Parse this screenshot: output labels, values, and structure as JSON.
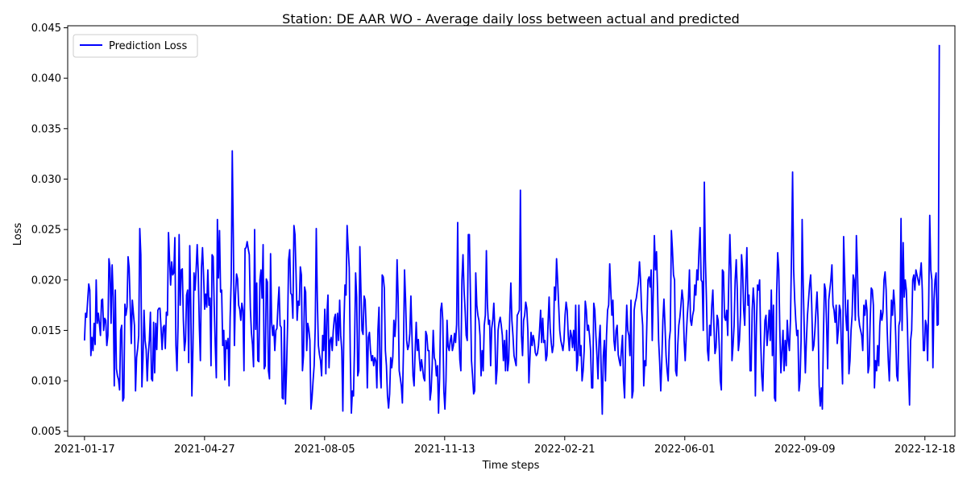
{
  "chart_data": {
    "type": "line",
    "title": "Station: DE AAR WO - Average daily loss between actual and predicted",
    "xlabel": "Time steps",
    "ylabel": "Loss",
    "x_start": "2021-01-17",
    "x_end": "2022-12-30",
    "xlim": [
      "2021-01-03",
      "2023-01-12"
    ],
    "ylim": [
      0.0045,
      0.0452
    ],
    "x_ticks": [
      "2021-01-17",
      "2021-04-27",
      "2021-08-05",
      "2021-11-13",
      "2022-02-21",
      "2022-06-01",
      "2022-09-09",
      "2022-12-18"
    ],
    "y_ticks": [
      "0.005",
      "0.010",
      "0.015",
      "0.020",
      "0.025",
      "0.030",
      "0.035",
      "0.040",
      "0.045"
    ],
    "grid": false,
    "legend_position": "top-left",
    "series": [
      {
        "name": "Prediction Loss",
        "color": "#0000ff",
        "values": [
          0.014,
          0.0167,
          0.0163,
          0.018,
          0.0196,
          0.019,
          0.0125,
          0.0143,
          0.013,
          0.0157,
          0.0136,
          0.02,
          0.0157,
          0.0167,
          0.0157,
          0.0145,
          0.018,
          0.0181,
          0.015,
          0.0162,
          0.016,
          0.0135,
          0.0145,
          0.0221,
          0.0212,
          0.0157,
          0.0215,
          0.0183,
          0.0095,
          0.019,
          0.0112,
          0.0105,
          0.0101,
          0.0091,
          0.015,
          0.0155,
          0.008,
          0.0083,
          0.0176,
          0.0165,
          0.0173,
          0.0223,
          0.0212,
          0.0175,
          0.0137,
          0.018,
          0.0167,
          0.0155,
          0.009,
          0.0123,
          0.0132,
          0.0145,
          0.0251,
          0.0225,
          0.0094,
          0.0122,
          0.017,
          0.014,
          0.0131,
          0.01,
          0.0126,
          0.014,
          0.0168,
          0.0102,
          0.01,
          0.0158,
          0.0108,
          0.0157,
          0.0131,
          0.017,
          0.0172,
          0.0172,
          0.0152,
          0.0131,
          0.0153,
          0.0155,
          0.0132,
          0.0168,
          0.0165,
          0.0247,
          0.022,
          0.0195,
          0.0218,
          0.0205,
          0.0207,
          0.0242,
          0.0135,
          0.011,
          0.0155,
          0.0245,
          0.0175,
          0.021,
          0.0211,
          0.016,
          0.013,
          0.014,
          0.0185,
          0.019,
          0.0118,
          0.0234,
          0.0174,
          0.0085,
          0.0132,
          0.0207,
          0.019,
          0.021,
          0.0235,
          0.0207,
          0.0154,
          0.012,
          0.0212,
          0.0232,
          0.0205,
          0.0171,
          0.0186,
          0.0173,
          0.021,
          0.0175,
          0.0182,
          0.0115,
          0.0225,
          0.0223,
          0.0175,
          0.0135,
          0.0103,
          0.026,
          0.0202,
          0.0249,
          0.0188,
          0.019,
          0.0135,
          0.015,
          0.0101,
          0.014,
          0.0132,
          0.0142,
          0.0095,
          0.0163,
          0.02,
          0.0328,
          0.024,
          0.0135,
          0.0185,
          0.0206,
          0.0201,
          0.0175,
          0.0171,
          0.016,
          0.0177,
          0.017,
          0.011,
          0.0231,
          0.0232,
          0.0238,
          0.0231,
          0.0225,
          0.0172,
          0.0148,
          0.0136,
          0.0114,
          0.025,
          0.0151,
          0.0197,
          0.012,
          0.0119,
          0.02,
          0.021,
          0.0182,
          0.0235,
          0.0112,
          0.0115,
          0.0201,
          0.0198,
          0.011,
          0.0102,
          0.0226,
          0.0158,
          0.0145,
          0.0155,
          0.013,
          0.015,
          0.0152,
          0.0175,
          0.0193,
          0.0155,
          0.0153,
          0.0083,
          0.0082,
          0.016,
          0.0077,
          0.011,
          0.0155,
          0.022,
          0.023,
          0.0187,
          0.0185,
          0.0162,
          0.0254,
          0.0245,
          0.0205,
          0.016,
          0.0179,
          0.0175,
          0.0213,
          0.0205,
          0.011,
          0.0125,
          0.0193,
          0.0188,
          0.013,
          0.0157,
          0.0151,
          0.014,
          0.0072,
          0.0083,
          0.01,
          0.0115,
          0.0152,
          0.0251,
          0.018,
          0.0135,
          0.0126,
          0.012,
          0.0105,
          0.0145,
          0.013,
          0.0171,
          0.0107,
          0.0165,
          0.0185,
          0.0113,
          0.014,
          0.0143,
          0.013,
          0.015,
          0.0162,
          0.0166,
          0.0135,
          0.0167,
          0.014,
          0.018,
          0.0145,
          0.013,
          0.007,
          0.0155,
          0.0195,
          0.0185,
          0.0254,
          0.0232,
          0.0212,
          0.0125,
          0.0068,
          0.009,
          0.0085,
          0.0135,
          0.0207,
          0.0183,
          0.0105,
          0.011,
          0.0233,
          0.019,
          0.015,
          0.0146,
          0.0184,
          0.018,
          0.015,
          0.0093,
          0.0143,
          0.0148,
          0.013,
          0.012,
          0.0125,
          0.0115,
          0.0123,
          0.012,
          0.0093,
          0.015,
          0.0173,
          0.011,
          0.0093,
          0.0205,
          0.0203,
          0.0192,
          0.013,
          0.0115,
          0.0085,
          0.0073,
          0.0087,
          0.0123,
          0.0113,
          0.0124,
          0.016,
          0.0144,
          0.0163,
          0.022,
          0.0183,
          0.011,
          0.0103,
          0.0095,
          0.0078,
          0.013,
          0.021,
          0.018,
          0.014,
          0.0131,
          0.0135,
          0.0147,
          0.0184,
          0.0145,
          0.0105,
          0.0095,
          0.013,
          0.0158,
          0.013,
          0.0141,
          0.0122,
          0.011,
          0.0121,
          0.0112,
          0.0103,
          0.01,
          0.0149,
          0.0145,
          0.013,
          0.013,
          0.0081,
          0.009,
          0.0115,
          0.015,
          0.0123,
          0.012,
          0.0105,
          0.0115,
          0.0068,
          0.0103,
          0.017,
          0.0177,
          0.016,
          0.009,
          0.0072,
          0.01,
          0.016,
          0.0134,
          0.013,
          0.014,
          0.0145,
          0.013,
          0.0135,
          0.0147,
          0.0138,
          0.0156,
          0.0257,
          0.0155,
          0.0121,
          0.011,
          0.02,
          0.0225,
          0.019,
          0.017,
          0.0145,
          0.014,
          0.0245,
          0.0245,
          0.0185,
          0.012,
          0.0105,
          0.0087,
          0.009,
          0.0207,
          0.0175,
          0.0165,
          0.016,
          0.0145,
          0.0105,
          0.013,
          0.011,
          0.0155,
          0.0165,
          0.0229,
          0.0175,
          0.0156,
          0.016,
          0.0115,
          0.0152,
          0.016,
          0.0177,
          0.015,
          0.0097,
          0.011,
          0.015,
          0.0158,
          0.0163,
          0.0155,
          0.0145,
          0.012,
          0.014,
          0.011,
          0.015,
          0.011,
          0.012,
          0.0165,
          0.0197,
          0.016,
          0.0145,
          0.0125,
          0.012,
          0.0115,
          0.0165,
          0.0167,
          0.017,
          0.0289,
          0.0145,
          0.0125,
          0.016,
          0.0165,
          0.0178,
          0.0172,
          0.015,
          0.0098,
          0.0123,
          0.0148,
          0.0135,
          0.0145,
          0.014,
          0.0128,
          0.0125,
          0.0127,
          0.0135,
          0.015,
          0.017,
          0.0138,
          0.0162,
          0.0138,
          0.014,
          0.012,
          0.0125,
          0.0157,
          0.0183,
          0.0152,
          0.0138,
          0.0128,
          0.0135,
          0.0193,
          0.018,
          0.0221,
          0.02,
          0.0175,
          0.015,
          0.014,
          0.0135,
          0.013,
          0.014,
          0.0165,
          0.0178,
          0.017,
          0.0145,
          0.013,
          0.015,
          0.0145,
          0.0133,
          0.015,
          0.013,
          0.0175,
          0.011,
          0.012,
          0.0175,
          0.0125,
          0.0135,
          0.01,
          0.011,
          0.013,
          0.0179,
          0.017,
          0.015,
          0.0155,
          0.0145,
          0.013,
          0.0093,
          0.0093,
          0.0177,
          0.017,
          0.0145,
          0.0125,
          0.0102,
          0.014,
          0.0155,
          0.011,
          0.0067,
          0.0125,
          0.014,
          0.01,
          0.0145,
          0.017,
          0.0175,
          0.0216,
          0.019,
          0.0165,
          0.018,
          0.014,
          0.013,
          0.015,
          0.0155,
          0.0126,
          0.012,
          0.0115,
          0.013,
          0.0145,
          0.01,
          0.0083,
          0.014,
          0.0175,
          0.015,
          0.0145,
          0.0125,
          0.018,
          0.0083,
          0.009,
          0.017,
          0.0178,
          0.0182,
          0.019,
          0.0198,
          0.0218,
          0.02,
          0.017,
          0.0155,
          0.0095,
          0.012,
          0.0115,
          0.016,
          0.02,
          0.0203,
          0.0193,
          0.021,
          0.014,
          0.019,
          0.0244,
          0.021,
          0.0228,
          0.019,
          0.014,
          0.0118,
          0.009,
          0.012,
          0.016,
          0.0181,
          0.0155,
          0.0125,
          0.011,
          0.01,
          0.014,
          0.015,
          0.0249,
          0.023,
          0.0205,
          0.02,
          0.011,
          0.0105,
          0.0135,
          0.0155,
          0.0163,
          0.0175,
          0.019,
          0.018,
          0.014,
          0.012,
          0.0145,
          0.0165,
          0.018,
          0.021,
          0.016,
          0.0155,
          0.0165,
          0.017,
          0.0195,
          0.0185,
          0.021,
          0.02,
          0.023,
          0.0252,
          0.02,
          0.0198,
          0.015,
          0.0297,
          0.022,
          0.018,
          0.013,
          0.012,
          0.0155,
          0.0145,
          0.0175,
          0.019,
          0.0155,
          0.0127,
          0.0133,
          0.0165,
          0.016,
          0.0135,
          0.01,
          0.0091,
          0.021,
          0.0208,
          0.0163,
          0.016,
          0.017,
          0.0145,
          0.02,
          0.0245,
          0.021,
          0.012,
          0.0135,
          0.0155,
          0.02,
          0.022,
          0.019,
          0.013,
          0.014,
          0.0165,
          0.0225,
          0.021,
          0.017,
          0.0155,
          0.02,
          0.0232,
          0.0175,
          0.0185,
          0.011,
          0.011,
          0.017,
          0.0192,
          0.0175,
          0.0085,
          0.0155,
          0.0195,
          0.019,
          0.02,
          0.014,
          0.0105,
          0.009,
          0.013,
          0.016,
          0.0165,
          0.0135,
          0.015,
          0.017,
          0.014,
          0.019,
          0.0125,
          0.0175,
          0.0083,
          0.008,
          0.0185,
          0.0227,
          0.021,
          0.015,
          0.0108,
          0.013,
          0.015,
          0.011,
          0.014,
          0.0115,
          0.016,
          0.014,
          0.013,
          0.016,
          0.0225,
          0.0307,
          0.021,
          0.018,
          0.016,
          0.0145,
          0.015,
          0.009,
          0.01,
          0.014,
          0.026,
          0.0195,
          0.015,
          0.0108,
          0.014,
          0.0165,
          0.018,
          0.0195,
          0.0205,
          0.0175,
          0.013,
          0.0135,
          0.015,
          0.017,
          0.0188,
          0.016,
          0.0095,
          0.0075,
          0.0093,
          0.0072,
          0.0145,
          0.0196,
          0.019,
          0.0155,
          0.0112,
          0.018,
          0.019,
          0.02,
          0.0215,
          0.0175,
          0.017,
          0.0158,
          0.0175,
          0.0137,
          0.015,
          0.0175,
          0.017,
          0.013,
          0.0097,
          0.0243,
          0.0205,
          0.0165,
          0.015,
          0.018,
          0.0107,
          0.012,
          0.015,
          0.0165,
          0.0205,
          0.02,
          0.016,
          0.0244,
          0.021,
          0.0165,
          0.0155,
          0.015,
          0.0145,
          0.013,
          0.0175,
          0.0165,
          0.018,
          0.017,
          0.0108,
          0.0115,
          0.016,
          0.0192,
          0.019,
          0.0175,
          0.0093,
          0.012,
          0.011,
          0.0135,
          0.0115,
          0.0155,
          0.017,
          0.016,
          0.0168,
          0.02,
          0.0208,
          0.019,
          0.015,
          0.012,
          0.01,
          0.014,
          0.018,
          0.0165,
          0.019,
          0.0175,
          0.0145,
          0.0105,
          0.01,
          0.0155,
          0.016,
          0.0261,
          0.015,
          0.0237,
          0.0183,
          0.02,
          0.019,
          0.0155,
          0.011,
          0.0076,
          0.014,
          0.015,
          0.02,
          0.0205,
          0.019,
          0.021,
          0.0205,
          0.02,
          0.0195,
          0.0205,
          0.0217,
          0.019,
          0.013,
          0.013,
          0.016,
          0.0155,
          0.012,
          0.0175,
          0.0264,
          0.021,
          0.02,
          0.0113,
          0.018,
          0.02,
          0.0207,
          0.0155,
          0.0156,
          0.0433
        ]
      }
    ]
  }
}
